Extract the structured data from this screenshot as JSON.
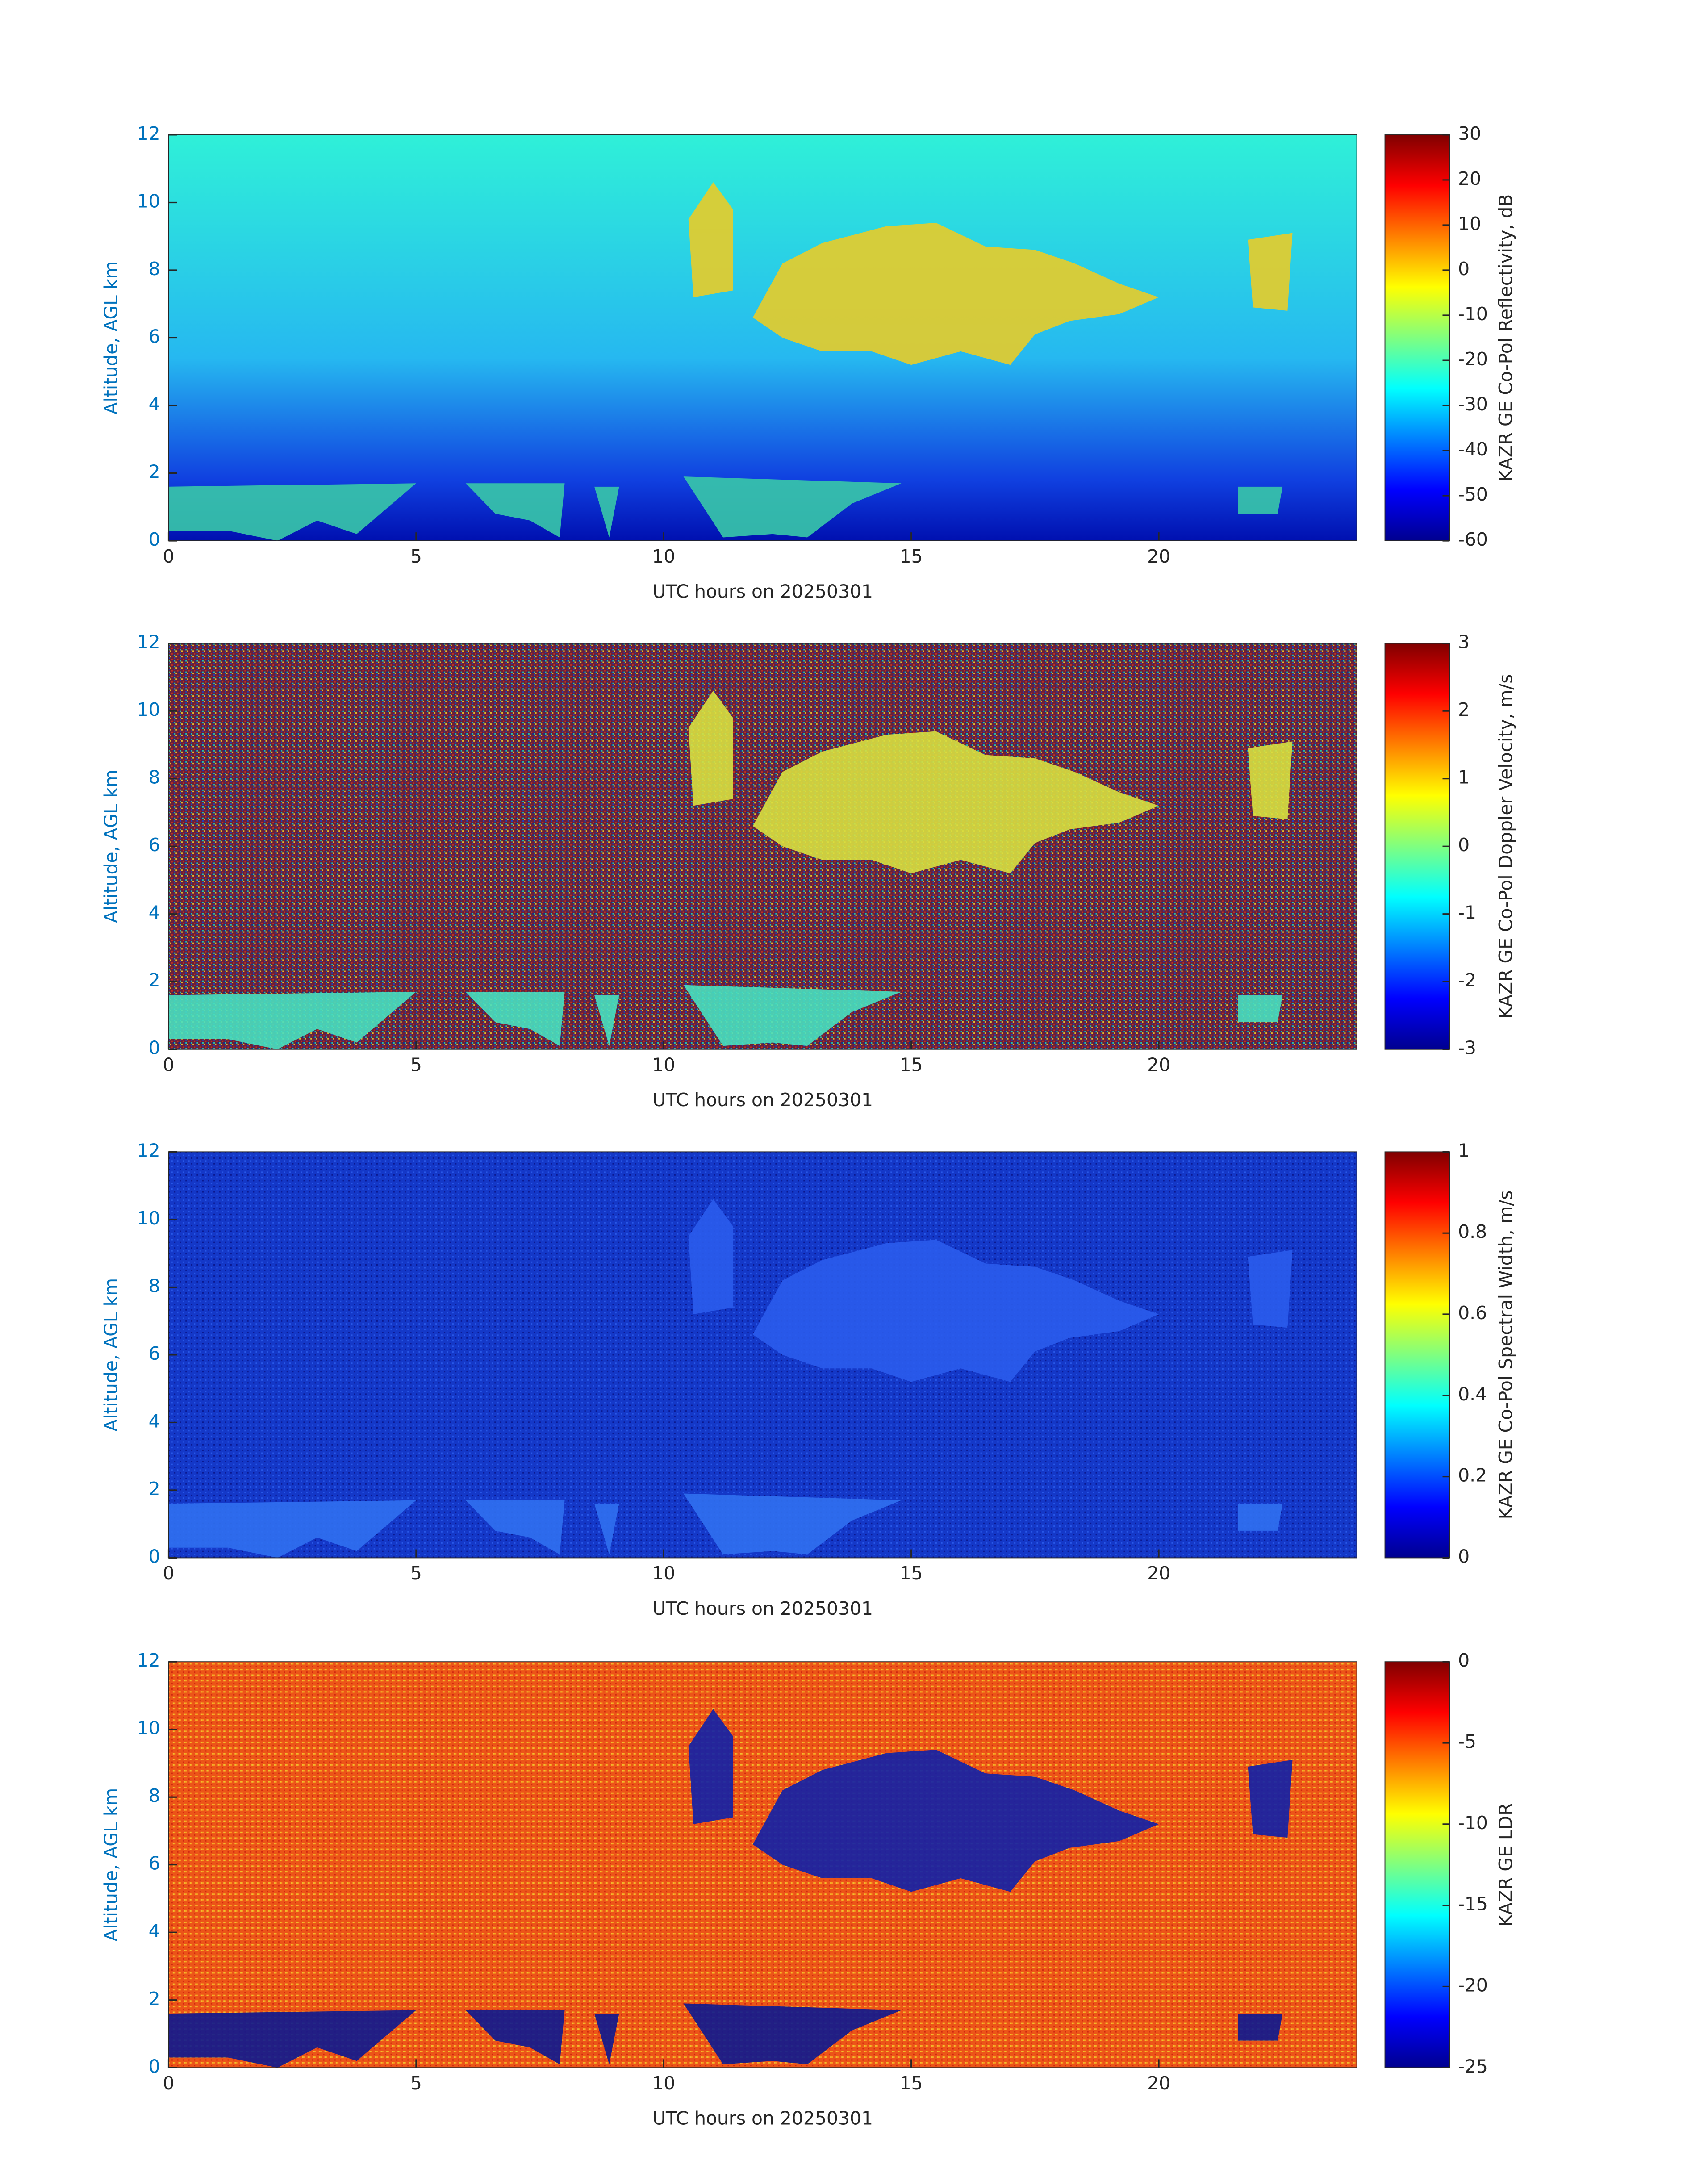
{
  "chart_data": [
    {
      "type": "heatmap",
      "colormap": "jet",
      "xlabel": "UTC hours on 20250301",
      "ylabel": "Altitude, AGL km",
      "xlim": [
        0,
        24
      ],
      "xticks": [
        0,
        5,
        10,
        15,
        20
      ],
      "ylim": [
        0,
        12
      ],
      "yticks": [
        0,
        2,
        4,
        6,
        8,
        10,
        12
      ],
      "colorbar_label": "KAZR GE Co-Pol Reflectivity, dB",
      "clim": [
        -60,
        30
      ],
      "cticks": [
        -60,
        -50,
        -40,
        -30,
        -20,
        -10,
        0,
        10,
        20,
        30
      ]
    },
    {
      "type": "heatmap",
      "colormap": "jet",
      "xlabel": "UTC hours on 20250301",
      "ylabel": "Altitude, AGL km",
      "xlim": [
        0,
        24
      ],
      "xticks": [
        0,
        5,
        10,
        15,
        20
      ],
      "ylim": [
        0,
        12
      ],
      "yticks": [
        0,
        2,
        4,
        6,
        8,
        10,
        12
      ],
      "colorbar_label": "KAZR GE Co-Pol Doppler Velocity, m/s",
      "clim": [
        -3,
        3
      ],
      "cticks": [
        -3,
        -2,
        -1,
        0,
        1,
        2,
        3
      ]
    },
    {
      "type": "heatmap",
      "colormap": "jet",
      "xlabel": "UTC hours on 20250301",
      "ylabel": "Altitude, AGL km",
      "xlim": [
        0,
        24
      ],
      "xticks": [
        0,
        5,
        10,
        15,
        20
      ],
      "ylim": [
        0,
        12
      ],
      "yticks": [
        0,
        2,
        4,
        6,
        8,
        10,
        12
      ],
      "colorbar_label": "KAZR GE Co-Pol Spectral Width, m/s",
      "clim": [
        0,
        1
      ],
      "cticks": [
        0,
        0.2,
        0.4,
        0.6,
        0.8,
        1
      ]
    },
    {
      "type": "heatmap",
      "colormap": "jet",
      "xlabel": "UTC hours on 20250301",
      "ylabel": "Altitude, AGL km",
      "xlim": [
        0,
        24
      ],
      "xticks": [
        0,
        5,
        10,
        15,
        20
      ],
      "ylim": [
        0,
        12
      ],
      "yticks": [
        0,
        2,
        4,
        6,
        8,
        10,
        12
      ],
      "colorbar_label": "KAZR GE LDR",
      "clim": [
        -25,
        0
      ],
      "cticks": [
        -25,
        -20,
        -15,
        -10,
        -5,
        0
      ]
    }
  ]
}
